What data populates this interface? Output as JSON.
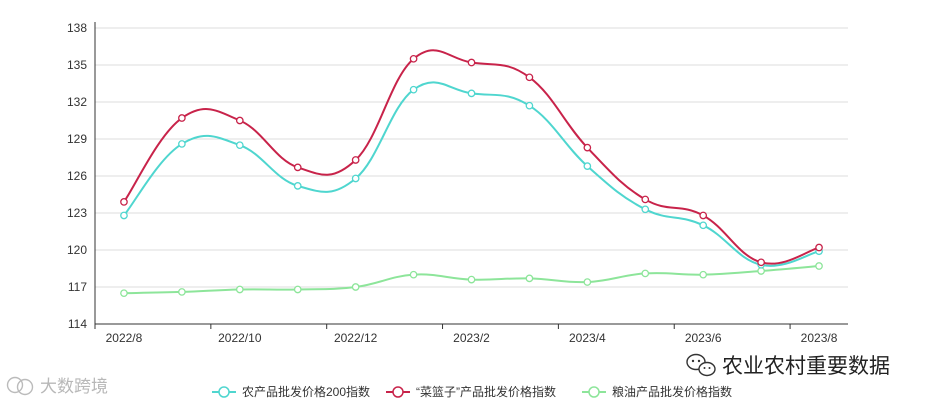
{
  "chart_data": {
    "type": "line",
    "categories": [
      "2022/8",
      "2022/9",
      "2022/10",
      "2022/11",
      "2022/12",
      "2023/1",
      "2023/2",
      "2023/3",
      "2023/4",
      "2023/5",
      "2023/6",
      "2023/7",
      "2023/8"
    ],
    "x_tick_labels": [
      "2022/8",
      "2022/10",
      "2022/12",
      "2023/2",
      "2023/4",
      "2023/6",
      "2023/8"
    ],
    "series": [
      {
        "name": "农产品批发价格200指数",
        "color": "#4fd6cf",
        "values": [
          122.8,
          128.6,
          128.5,
          125.2,
          125.8,
          133.0,
          132.7,
          131.7,
          126.8,
          123.3,
          122.0,
          118.8,
          119.9
        ]
      },
      {
        "name": "“菜篮子”产品批发价格指数",
        "color": "#c8234a",
        "values": [
          123.9,
          130.7,
          130.5,
          126.7,
          127.3,
          135.5,
          135.2,
          134.0,
          128.3,
          124.1,
          122.8,
          119.0,
          120.2
        ]
      },
      {
        "name": "粮油产品批发价格指数",
        "color": "#8de59a",
        "values": [
          116.5,
          116.6,
          116.8,
          116.8,
          117.0,
          118.0,
          117.6,
          117.7,
          117.4,
          118.1,
          118.0,
          118.3,
          118.7
        ]
      }
    ],
    "yticks": [
      114,
      117,
      120,
      123,
      126,
      129,
      132,
      135,
      138
    ],
    "ylim": [
      114,
      138
    ],
    "grid": true,
    "legend_position": "bottom"
  },
  "watermarks": {
    "right": "农业农村重要数据",
    "left": "大数跨境"
  }
}
